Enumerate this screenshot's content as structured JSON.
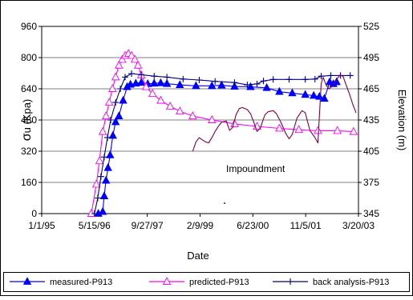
{
  "chart_data": {
    "type": "line",
    "x_axis": {
      "label": "Date",
      "ticks": [
        "1/1/95",
        "5/15/96",
        "9/27/97",
        "2/9/99",
        "6/23/00",
        "11/5/01",
        "3/20/03"
      ],
      "range": [
        "1/1/95",
        "3/20/03"
      ]
    },
    "y_left": {
      "label_prefix": "σ",
      "label_rest": "u (Kpa)",
      "range": [
        0,
        960
      ],
      "ticks": [
        0,
        160,
        320,
        480,
        640,
        800,
        960
      ]
    },
    "y_right": {
      "label": "Elevation (m)",
      "range": [
        345,
        525
      ],
      "ticks": [
        345,
        375,
        405,
        435,
        465,
        495,
        525
      ]
    },
    "annotation": {
      "text": "Impoundment"
    },
    "series": [
      {
        "name": "measured-P913",
        "axis": "left",
        "color": "#0000ff",
        "marker": "filled-triangle",
        "points": [
          [
            "6/20/96",
            0
          ],
          [
            "8/1/96",
            10
          ],
          [
            "8/15/96",
            90
          ],
          [
            "9/1/96",
            170
          ],
          [
            "9/20/96",
            235
          ],
          [
            "10/10/96",
            300
          ],
          [
            "11/5/96",
            400
          ],
          [
            "12/1/96",
            470
          ],
          [
            "1/1/97",
            500
          ],
          [
            "2/10/97",
            580
          ],
          [
            "3/20/97",
            650
          ],
          [
            "4/20/97",
            662
          ],
          [
            "6/10/97",
            668
          ],
          [
            "8/1/97",
            672
          ],
          [
            "10/1/97",
            665
          ],
          [
            "12/1/97",
            668
          ],
          [
            "2/1/98",
            670
          ],
          [
            "4/1/98",
            666
          ],
          [
            "8/1/98",
            660
          ],
          [
            "1/1/99",
            655
          ],
          [
            "6/1/99",
            655
          ],
          [
            "9/1/99",
            658
          ],
          [
            "1/1/00",
            652
          ],
          [
            "6/1/00",
            650
          ],
          [
            "11/1/00",
            645
          ],
          [
            "3/1/01",
            625
          ],
          [
            "7/1/01",
            618
          ],
          [
            "11/1/01",
            610
          ],
          [
            "1/20/02",
            605
          ],
          [
            "3/15/02",
            600
          ],
          [
            "5/1/02",
            590
          ],
          [
            "6/20/02",
            675
          ],
          [
            "7/25/02",
            665
          ],
          [
            "8/25/02",
            675
          ]
        ]
      },
      {
        "name": "predicted-P913",
        "axis": "left",
        "color": "#ff00ff",
        "marker": "hollow-triangle",
        "points": [
          [
            "4/15/96",
            0
          ],
          [
            "6/1/96",
            150
          ],
          [
            "7/1/96",
            270
          ],
          [
            "8/1/96",
            420
          ],
          [
            "9/1/96",
            500
          ],
          [
            "10/1/96",
            570
          ],
          [
            "11/1/96",
            640
          ],
          [
            "12/1/96",
            700
          ],
          [
            "1/1/97",
            760
          ],
          [
            "2/1/97",
            790
          ],
          [
            "3/1/97",
            810
          ],
          [
            "4/1/97",
            820
          ],
          [
            "5/1/97",
            810
          ],
          [
            "6/1/97",
            790
          ],
          [
            "7/1/97",
            760
          ],
          [
            "8/1/97",
            710
          ],
          [
            "9/15/97",
            650
          ],
          [
            "11/15/97",
            615
          ],
          [
            "2/1/98",
            580
          ],
          [
            "5/1/98",
            550
          ],
          [
            "8/1/98",
            525
          ],
          [
            "12/1/98",
            500
          ],
          [
            "6/1/99",
            480
          ],
          [
            "1/1/00",
            460
          ],
          [
            "8/1/00",
            447
          ],
          [
            "3/1/01",
            437
          ],
          [
            "9/1/01",
            430
          ],
          [
            "3/1/02",
            425
          ],
          [
            "9/1/02",
            425
          ],
          [
            "2/1/03",
            420
          ]
        ]
      },
      {
        "name": "back analysis-P913",
        "axis": "left",
        "color": "#000080",
        "marker": "plus",
        "points": [
          [
            "5/15/96",
            0
          ],
          [
            "6/15/96",
            80
          ],
          [
            "7/15/96",
            190
          ],
          [
            "8/15/96",
            290
          ],
          [
            "9/15/96",
            390
          ],
          [
            "10/15/96",
            480
          ],
          [
            "12/1/96",
            570
          ],
          [
            "1/15/97",
            640
          ],
          [
            "3/1/97",
            700
          ],
          [
            "5/1/97",
            718
          ],
          [
            "8/1/97",
            712
          ],
          [
            "12/1/97",
            705
          ],
          [
            "4/1/98",
            700
          ],
          [
            "9/1/98",
            690
          ],
          [
            "2/1/99",
            685
          ],
          [
            "7/1/99",
            678
          ],
          [
            "1/1/00",
            672
          ],
          [
            "5/1/00",
            660
          ],
          [
            "8/1/00",
            665
          ],
          [
            "10/1/00",
            680
          ],
          [
            "1/1/01",
            688
          ],
          [
            "6/1/01",
            688
          ],
          [
            "11/1/01",
            688
          ],
          [
            "2/1/02",
            690
          ],
          [
            "4/1/02",
            705
          ],
          [
            "7/1/02",
            708
          ],
          [
            "10/1/02",
            708
          ],
          [
            "1/1/03",
            708
          ]
        ]
      },
      {
        "name": "Elevation",
        "axis": "right",
        "color": "#800040",
        "marker": "none",
        "points": [
          [
            "12/1/98",
            405
          ],
          [
            "1/1/99",
            414
          ],
          [
            "2/1/99",
            418
          ],
          [
            "3/1/99",
            416
          ],
          [
            "4/1/99",
            414
          ],
          [
            "5/1/99",
            413
          ],
          [
            "6/1/99",
            418
          ],
          [
            "7/1/99",
            424
          ],
          [
            "8/1/99",
            429
          ],
          [
            "9/1/99",
            433
          ],
          [
            "10/15/99",
            434
          ],
          [
            "11/15/99",
            425
          ],
          [
            "12/15/99",
            428
          ],
          [
            "1/15/00",
            440
          ],
          [
            "2/15/00",
            446
          ],
          [
            "3/15/00",
            447
          ],
          [
            "5/1/00",
            445
          ],
          [
            "6/1/00",
            441
          ],
          [
            "7/1/00",
            433
          ],
          [
            "8/1/00",
            424
          ],
          [
            "9/1/00",
            427
          ],
          [
            "10/15/00",
            440
          ],
          [
            "11/15/00",
            443
          ],
          [
            "1/1/01",
            444
          ],
          [
            "2/1/01",
            441
          ],
          [
            "3/15/01",
            433
          ],
          [
            "5/1/01",
            422
          ],
          [
            "6/1/01",
            417
          ],
          [
            "7/1/01",
            421
          ],
          [
            "8/15/01",
            437
          ],
          [
            "10/1/01",
            444
          ],
          [
            "11/1/01",
            442
          ],
          [
            "12/15/01",
            425
          ],
          [
            "2/1/02",
            418
          ],
          [
            "3/1/02",
            413
          ],
          [
            "4/1/02",
            470
          ],
          [
            "4/20/02",
            476
          ],
          [
            "5/20/02",
            468
          ],
          [
            "6/15/02",
            465
          ],
          [
            "7/20/02",
            468
          ],
          [
            "8/25/02",
            474
          ],
          [
            "9/25/02",
            478
          ],
          [
            "10/25/02",
            477
          ],
          [
            "11/25/02",
            468
          ],
          [
            "12/25/02",
            460
          ],
          [
            "1/25/03",
            450
          ],
          [
            "2/25/03",
            442
          ]
        ]
      }
    ],
    "legend": {
      "placement": "bottom"
    }
  }
}
